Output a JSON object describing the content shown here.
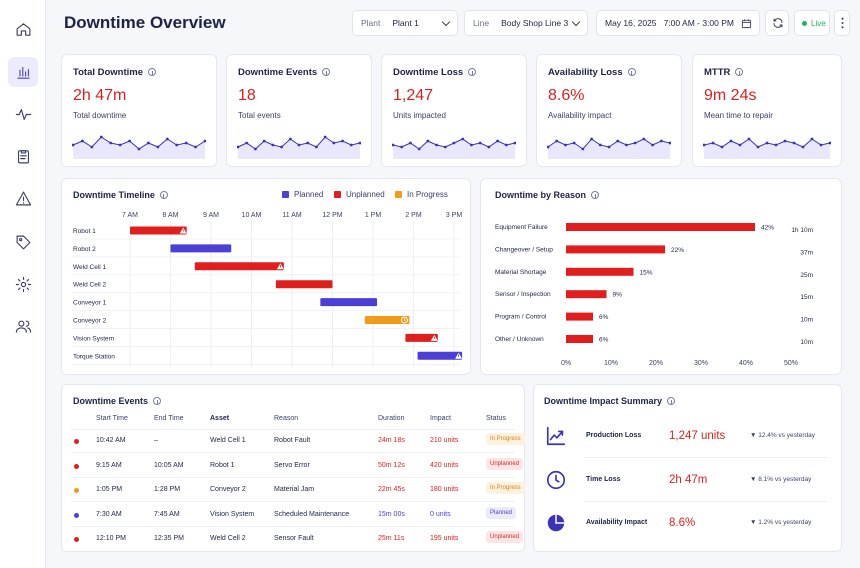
{
  "header": {
    "title": "Downtime Overview",
    "plant_label": "Plant",
    "plant_value": "Plant 1",
    "line_label": "Line",
    "line_value": "Body Shop Line 3",
    "date_range": "May 16, 2025   7:00 AM - 3:00 PM",
    "live_label": "Live"
  },
  "kpis": [
    {
      "title": "Total Downtime",
      "value": "2h 47m",
      "sub": "Total downtime",
      "series": [
        5,
        7,
        4,
        9,
        6,
        5,
        7,
        3,
        6,
        4,
        8,
        5,
        6,
        4,
        7
      ]
    },
    {
      "title": "Downtime Events",
      "value": "18",
      "sub": "Total events",
      "series": [
        4,
        6,
        3,
        7,
        5,
        4,
        8,
        5,
        6,
        4,
        9,
        6,
        7,
        5,
        6
      ]
    },
    {
      "title": "Downtime Loss",
      "value": "1,247",
      "sub": "Units impacted",
      "series": [
        5,
        4,
        6,
        3,
        7,
        5,
        4,
        6,
        8,
        5,
        6,
        4,
        7,
        5,
        6
      ]
    },
    {
      "title": "Availability Loss",
      "value": "8.6%",
      "sub": "Availability impact",
      "series": [
        4,
        7,
        5,
        6,
        3,
        8,
        5,
        4,
        7,
        5,
        6,
        8,
        5,
        7,
        6
      ]
    },
    {
      "title": "MTTR",
      "value": "9m 24s",
      "sub": "Mean time to repair",
      "series": [
        5,
        6,
        4,
        7,
        5,
        8,
        4,
        6,
        5,
        7,
        6,
        4,
        8,
        5,
        6
      ]
    }
  ],
  "timeline": {
    "title": "Downtime Timeline",
    "legend": [
      {
        "label": "Planned",
        "color": "#4b3fd6"
      },
      {
        "label": "Unplanned",
        "color": "#e01e1e"
      },
      {
        "label": "In Progress",
        "color": "#f29a1a"
      }
    ],
    "hours": [
      "7 AM",
      "8 AM",
      "9 AM",
      "10 AM",
      "11 AM",
      "12 PM",
      "1 PM",
      "2 PM",
      "3 PM"
    ],
    "rows": [
      {
        "asset": "Robot 1",
        "start": 7.0,
        "end": 8.4,
        "kind": "unplanned",
        "marker": "warning-icon"
      },
      {
        "asset": "Robot 2",
        "start": 8.0,
        "end": 9.5,
        "kind": "planned",
        "marker": ""
      },
      {
        "asset": "Weld Cell 1",
        "start": 8.6,
        "end": 10.8,
        "kind": "unplanned",
        "marker": "warning-icon"
      },
      {
        "asset": "Weld Cell 2",
        "start": 10.6,
        "end": 12.0,
        "kind": "unplanned",
        "marker": ""
      },
      {
        "asset": "Conveyor 1",
        "start": 11.7,
        "end": 13.1,
        "kind": "planned",
        "marker": ""
      },
      {
        "asset": "Conveyor 2",
        "start": 12.8,
        "end": 13.9,
        "kind": "inprogress",
        "marker": "clock-icon"
      },
      {
        "asset": "Vision System",
        "start": 13.8,
        "end": 14.6,
        "kind": "unplanned",
        "marker": "warning-icon"
      },
      {
        "asset": "Torque Station",
        "start": 14.1,
        "end": 15.2,
        "kind": "planned",
        "marker": "warning-icon"
      }
    ]
  },
  "reasons": {
    "title": "Downtime by Reason",
    "items": [
      {
        "label": "Equipment Failure",
        "pct": 42,
        "pct_label": "42%",
        "time": "1h 10m"
      },
      {
        "label": "Changeover / Setup",
        "pct": 22,
        "pct_label": "22%",
        "time": "37m"
      },
      {
        "label": "Material Shortage",
        "pct": 15,
        "pct_label": "15%",
        "time": "25m"
      },
      {
        "label": "Sensor / Inspection",
        "pct": 9,
        "pct_label": "9%",
        "time": "15m"
      },
      {
        "label": "Program / Control",
        "pct": 6,
        "pct_label": "6%",
        "time": "10m"
      },
      {
        "label": "Other / Unknown",
        "pct": 6,
        "pct_label": "6%",
        "time": "10m"
      }
    ],
    "axis": [
      "0%",
      "10%",
      "20%",
      "30%",
      "40%",
      "50%"
    ],
    "color": "#e01e1e"
  },
  "events": {
    "title": "Downtime Events",
    "columns": [
      "Start Time",
      "End Time",
      "Asset",
      "Reason",
      "Duration",
      "Impact",
      "Status"
    ],
    "rows": [
      {
        "dot": "#e01e1e",
        "start": "10:42 AM",
        "end": "–",
        "asset": "Weld Cell 1",
        "reason": "Robot Fault",
        "duration": "24m 18s",
        "dur_color": "#e01e1e",
        "impact": "210 units",
        "imp_color": "#e01e1e",
        "status": "In Progress",
        "status_fg": "#d9821a",
        "status_bg": "#fdf1df"
      },
      {
        "dot": "#e01e1e",
        "start": "9:15 AM",
        "end": "10:05 AM",
        "asset": "Robot 1",
        "reason": "Servo Error",
        "duration": "50m 12s",
        "dur_color": "#e01e1e",
        "impact": "420 units",
        "imp_color": "#e01e1e",
        "status": "Unplanned",
        "status_fg": "#d22a2a",
        "status_bg": "#fde5e5"
      },
      {
        "dot": "#f29a1a",
        "start": "1:05 PM",
        "end": "1:28 PM",
        "asset": "Conveyor 2",
        "reason": "Material Jam",
        "duration": "22m 45s",
        "dur_color": "#e01e1e",
        "impact": "180 units",
        "imp_color": "#e01e1e",
        "status": "In Progress",
        "status_fg": "#d9821a",
        "status_bg": "#fdf1df"
      },
      {
        "dot": "#4b3fd6",
        "start": "7:30 AM",
        "end": "7:45 AM",
        "asset": "Vision System",
        "reason": "Scheduled Maintenance",
        "duration": "15m 00s",
        "dur_color": "#4b3fd6",
        "impact": "0 units",
        "imp_color": "#4b3fd6",
        "status": "Planned",
        "status_fg": "#4b3fd6",
        "status_bg": "#ecebfb"
      },
      {
        "dot": "#e01e1e",
        "start": "12:10 PM",
        "end": "12:35 PM",
        "asset": "Weld Cell 2",
        "reason": "Sensor Fault",
        "duration": "25m 11s",
        "dur_color": "#e01e1e",
        "impact": "195 units",
        "imp_color": "#e01e1e",
        "status": "Unplanned",
        "status_fg": "#d22a2a",
        "status_bg": "#fde5e5"
      }
    ]
  },
  "impact": {
    "title": "Downtime Impact Summary",
    "items": [
      {
        "icon": "trend-up-icon",
        "label": "Production Loss",
        "value": "1,247 units",
        "delta": "▼ 12.4% vs yesterday"
      },
      {
        "icon": "clock-icon",
        "label": "Time Loss",
        "value": "2h 47m",
        "delta": "▼ 8.1% vs yesterday"
      },
      {
        "icon": "pie-chart-icon",
        "label": "Availability Impact",
        "value": "8.6%",
        "delta": "▼ 1.2% vs yesterday"
      }
    ]
  }
}
